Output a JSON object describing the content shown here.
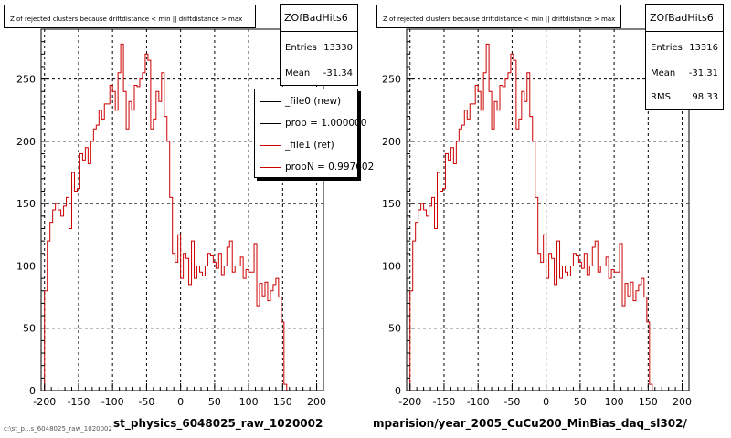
{
  "colors": {
    "ref": "#cc0000",
    "new": "#000000",
    "grid": "#000000"
  },
  "panels": [
    {
      "title": "Z of rejected clusters because driftdistance < min || driftdistance > max",
      "xlabel": "st_physics_6048025_raw_1020002",
      "stats": {
        "name": "ZOfBadHits6",
        "entries_label": "Entries",
        "entries": "13330",
        "mean_label": "Mean",
        "mean": "-31.34"
      },
      "legend": [
        {
          "label": "_file0 (new)",
          "color": "#000000"
        },
        {
          "label": "prob = 1.000000",
          "color": "#000000"
        },
        {
          "label": "_file1 (ref)",
          "color": "#cc0000"
        },
        {
          "label": "probN = 0.997602",
          "color": "#cc0000"
        }
      ]
    },
    {
      "title": "Z of rejected clusters because driftdistance < min || driftdistance > max",
      "xlabel": "mparision/year_2005_CuCu200_MinBias_daq_sl302/",
      "stats": {
        "name": "ZOfBadHits6",
        "entries_label": "Entries",
        "entries": "13316",
        "mean_label": "Mean",
        "mean": "-31.31",
        "rms_label": "RMS",
        "rms": "98.33"
      }
    }
  ],
  "footer": "c:\\st_p...s_6048025_raw_1020002",
  "chart_data": [
    {
      "type": "histogram",
      "title": "Z of rejected clusters because driftdistance < min || driftdistance > max",
      "xlabel": "st_physics_6048025_raw_1020002",
      "ylabel": "",
      "xlim": [
        -205,
        210
      ],
      "ylim": [
        0,
        290
      ],
      "xticks": [
        -200,
        -150,
        -100,
        -50,
        0,
        50,
        100,
        150,
        200
      ],
      "yticks": [
        0,
        50,
        100,
        150,
        200,
        250
      ],
      "grid": true,
      "legend_position": "top-right",
      "bin_edges_start": -200,
      "bin_width": 4,
      "series": [
        {
          "name": "_file1 (ref)",
          "values": [
            80,
            120,
            135,
            145,
            150,
            145,
            140,
            148,
            155,
            130,
            175,
            160,
            162,
            190,
            185,
            195,
            182,
            200,
            210,
            213,
            225,
            218,
            230,
            230,
            245,
            240,
            225,
            255,
            278,
            240,
            210,
            232,
            225,
            245,
            244,
            250,
            255,
            270,
            265,
            210,
            218,
            240,
            232,
            255,
            220,
            200,
            155,
            110,
            103,
            125,
            90,
            110,
            106,
            85,
            120,
            90,
            100,
            95,
            92,
            100,
            110,
            108,
            103,
            98,
            110,
            93,
            100,
            115,
            120,
            95,
            100,
            100,
            107,
            90,
            97,
            95,
            95,
            118,
            68,
            86,
            76,
            87,
            72,
            80,
            85,
            90,
            75,
            55,
            5,
            0
          ]
        }
      ]
    },
    {
      "type": "histogram",
      "title": "Z of rejected clusters because driftdistance < min || driftdistance > max",
      "xlabel": "mparision/year_2005_CuCu200_MinBias_daq_sl302/",
      "ylabel": "",
      "xlim": [
        -205,
        210
      ],
      "ylim": [
        0,
        290
      ],
      "xticks": [
        -200,
        -150,
        -100,
        -50,
        0,
        50,
        100,
        150,
        200
      ],
      "yticks": [
        0,
        50,
        100,
        150,
        200,
        250
      ],
      "grid": true,
      "bin_edges_start": -200,
      "bin_width": 4,
      "series": [
        {
          "name": "_file1 (ref)",
          "values": [
            80,
            120,
            135,
            145,
            150,
            145,
            140,
            148,
            155,
            130,
            175,
            160,
            162,
            190,
            185,
            195,
            182,
            200,
            210,
            213,
            225,
            218,
            230,
            230,
            245,
            240,
            225,
            255,
            278,
            240,
            210,
            232,
            225,
            245,
            244,
            250,
            255,
            270,
            265,
            210,
            218,
            240,
            232,
            255,
            220,
            200,
            155,
            110,
            103,
            125,
            90,
            110,
            106,
            85,
            120,
            90,
            100,
            95,
            92,
            100,
            110,
            108,
            103,
            98,
            110,
            93,
            100,
            115,
            120,
            95,
            100,
            100,
            107,
            90,
            97,
            95,
            95,
            118,
            68,
            86,
            76,
            87,
            72,
            80,
            85,
            90,
            75,
            55,
            5,
            0
          ]
        }
      ]
    }
  ]
}
